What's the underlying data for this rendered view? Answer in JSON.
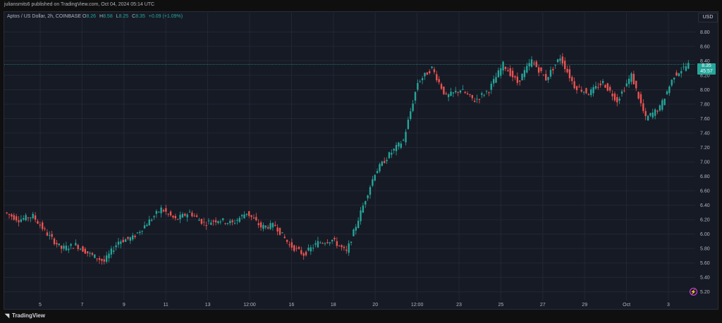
{
  "header": {
    "publisher": "juliansmits6 published on TradingView.com, Oct 04, 2024 05:14 UTC"
  },
  "legend": {
    "symbol": "Aptos / US Dollar, 2h, COINBASE",
    "open_label": "O",
    "open": "8.26",
    "high_label": "H",
    "high": "8.58",
    "low_label": "L",
    "low": "8.25",
    "close_label": "C",
    "close": "8.35",
    "change": "+0.09 (+1.09%)"
  },
  "toolbar": {
    "currency": "USD"
  },
  "price_badge": {
    "price": "8.35",
    "countdown": "45:57"
  },
  "footer": {
    "brand": "TradingView"
  },
  "colors": {
    "up": "#26a69a",
    "down": "#ef5350",
    "background": "#161a25",
    "grid": "#232734"
  },
  "chart_data": {
    "type": "candlestick",
    "ylim": [
      5.1,
      8.95
    ],
    "y_ticks": [
      "8.80",
      "8.60",
      "8.40",
      "8.20",
      "8.00",
      "7.80",
      "7.60",
      "7.40",
      "7.20",
      "7.00",
      "6.80",
      "6.60",
      "6.40",
      "6.20",
      "6.00",
      "5.80",
      "5.60",
      "5.40",
      "5.20"
    ],
    "x_ticks": [
      "5",
      "7",
      "9",
      "11",
      "13",
      "12:00",
      "16",
      "18",
      "20",
      "12:00",
      "23",
      "25",
      "27",
      "29",
      "Oct",
      "3"
    ],
    "last_price": 8.35,
    "approx_path": [
      [
        6.3,
        6.2
      ],
      [
        6.2,
        6.25
      ],
      [
        6.25,
        6.0
      ],
      [
        6.0,
        5.8
      ],
      [
        5.8,
        5.85
      ],
      [
        5.85,
        5.72
      ],
      [
        5.72,
        5.62
      ],
      [
        5.62,
        5.9
      ],
      [
        5.9,
        5.95
      ],
      [
        5.95,
        6.15
      ],
      [
        6.15,
        6.35
      ],
      [
        6.35,
        6.2
      ],
      [
        6.2,
        6.3
      ],
      [
        6.3,
        6.15
      ],
      [
        6.15,
        6.2
      ],
      [
        6.2,
        6.15
      ],
      [
        6.15,
        6.3
      ],
      [
        6.3,
        6.1
      ],
      [
        6.1,
        6.12
      ],
      [
        6.12,
        5.85
      ],
      [
        5.85,
        5.72
      ],
      [
        5.72,
        5.88
      ],
      [
        5.88,
        5.92
      ],
      [
        5.92,
        5.75
      ],
      [
        5.75,
        6.3
      ],
      [
        6.3,
        6.85
      ],
      [
        6.85,
        7.1
      ],
      [
        7.1,
        7.3
      ],
      [
        7.3,
        8.1
      ],
      [
        8.1,
        8.3
      ],
      [
        8.3,
        7.9
      ],
      [
        7.9,
        8.0
      ],
      [
        8.0,
        7.85
      ],
      [
        7.85,
        8.0
      ],
      [
        8.0,
        8.35
      ],
      [
        8.35,
        8.1
      ],
      [
        8.1,
        8.4
      ],
      [
        8.4,
        8.15
      ],
      [
        8.15,
        8.45
      ],
      [
        8.45,
        8.05
      ],
      [
        8.05,
        7.95
      ],
      [
        7.95,
        8.1
      ],
      [
        8.1,
        7.85
      ],
      [
        7.85,
        8.2
      ],
      [
        8.2,
        7.6
      ],
      [
        7.6,
        7.75
      ],
      [
        7.75,
        8.2
      ],
      [
        8.2,
        8.35
      ]
    ]
  }
}
